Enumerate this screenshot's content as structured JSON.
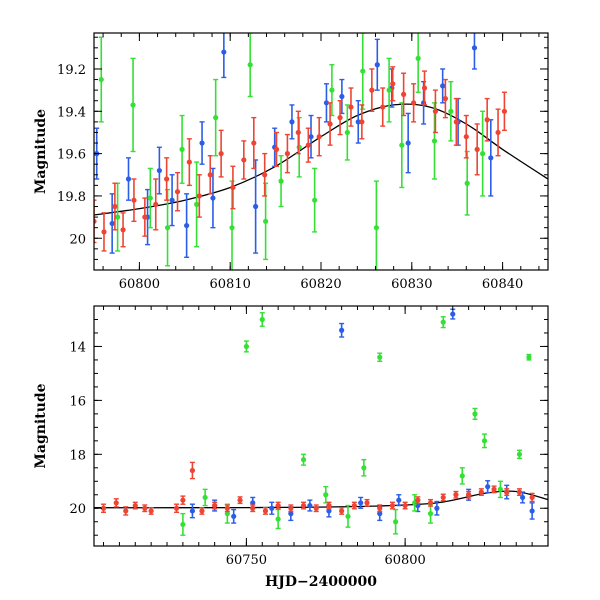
{
  "chart_data": [
    {
      "type": "scatter",
      "title": "",
      "xlabel": "",
      "ylabel": "Magnitude",
      "xlim": [
        60795,
        60845
      ],
      "ylim": [
        20.15,
        19.03
      ],
      "y_inverted": true,
      "x_ticks": [
        60800,
        60810,
        60820,
        60830,
        60840
      ],
      "x_tick_labels": [
        "60800",
        "60810",
        "60820",
        "60830",
        "60840"
      ],
      "y_ticks": [
        19.2,
        19.4,
        19.6,
        19.8,
        20.0
      ],
      "y_tick_labels": [
        "19.2",
        "19.4",
        "19.6",
        "19.8",
        "20"
      ],
      "model_curve": {
        "name": "",
        "color": "#000000",
        "x": [
          60795,
          60800,
          60805,
          60810,
          60815,
          60820,
          60824,
          60828,
          60832,
          60836,
          60840,
          60845
        ],
        "y": [
          19.89,
          19.86,
          19.82,
          19.76,
          19.66,
          19.52,
          19.42,
          19.37,
          19.38,
          19.46,
          19.58,
          19.72
        ]
      },
      "series": [
        {
          "name": "",
          "color": "#2b5ee8",
          "x": [
            60795.3,
            60797.0,
            60798.8,
            60800.9,
            60802.2,
            60803.6,
            60805.2,
            60806.9,
            60808.1,
            60809.3,
            60812.8,
            60814.9,
            60816.8,
            60818.9,
            60820.6,
            60822.3,
            60824.1,
            60826.2,
            60827.8,
            60829.6,
            60831.3,
            60833.4,
            60835.1,
            60836.9,
            60838.7
          ],
          "y": [
            19.6,
            19.93,
            19.72,
            19.9,
            19.68,
            19.82,
            19.94,
            19.55,
            19.81,
            19.12,
            19.85,
            19.57,
            19.45,
            19.52,
            19.36,
            19.33,
            19.45,
            19.18,
            19.29,
            19.55,
            19.36,
            19.28,
            19.45,
            19.1,
            19.62
          ],
          "err": [
            0.12,
            0.14,
            0.1,
            0.13,
            0.11,
            0.12,
            0.15,
            0.1,
            0.14,
            0.12,
            0.22,
            0.09,
            0.08,
            0.1,
            0.09,
            0.08,
            0.1,
            0.12,
            0.09,
            0.14,
            0.1,
            0.08,
            0.11,
            0.1,
            0.18
          ]
        },
        {
          "name": "",
          "color": "#35e035",
          "x": [
            60795.8,
            60797.6,
            60799.3,
            60801.2,
            60803.1,
            60804.7,
            60806.3,
            60808.4,
            60810.2,
            60812.2,
            60813.9,
            60815.6,
            60817.6,
            60819.3,
            60821.2,
            60822.9,
            60824.6,
            60826.1,
            60827.5,
            60828.9,
            60830.7,
            60832.5,
            60834.3,
            60836.1,
            60837.8
          ],
          "y": [
            19.25,
            19.9,
            19.37,
            19.81,
            19.95,
            19.58,
            19.84,
            19.43,
            19.95,
            19.18,
            19.92,
            19.73,
            19.57,
            19.82,
            19.3,
            19.5,
            19.21,
            19.95,
            19.3,
            19.56,
            19.15,
            19.54,
            19.4,
            19.74,
            19.6
          ],
          "err": [
            0.2,
            0.16,
            0.22,
            0.14,
            0.18,
            0.16,
            0.2,
            0.18,
            0.22,
            0.15,
            0.18,
            0.12,
            0.14,
            0.15,
            0.12,
            0.13,
            0.18,
            0.22,
            0.15,
            0.2,
            0.16,
            0.18,
            0.14,
            0.15,
            0.2
          ]
        },
        {
          "name": "",
          "color": "#ee4433",
          "x": [
            60795.0,
            60796.1,
            60797.3,
            60798.2,
            60799.4,
            60800.6,
            60801.8,
            60803.0,
            60804.2,
            60805.5,
            60806.6,
            60807.8,
            60809.0,
            60810.3,
            60811.5,
            60812.6,
            60813.8,
            60815.1,
            60816.3,
            60817.5,
            60818.6,
            60819.8,
            60821.0,
            60822.1,
            60823.3,
            60824.5,
            60825.6,
            60826.8,
            60827.9,
            60829.1,
            60830.2,
            60831.4,
            60832.6,
            60833.7,
            60834.9,
            60836.0,
            60837.2,
            60838.3,
            60839.5,
            60840.2
          ],
          "y": [
            19.92,
            19.97,
            19.85,
            19.96,
            19.82,
            19.9,
            19.84,
            19.72,
            19.78,
            19.64,
            19.8,
            19.7,
            19.6,
            19.76,
            19.63,
            19.55,
            19.7,
            19.58,
            19.6,
            19.5,
            19.56,
            19.52,
            19.46,
            19.43,
            19.38,
            19.45,
            19.3,
            19.38,
            19.27,
            19.32,
            19.36,
            19.29,
            19.4,
            19.34,
            19.45,
            19.52,
            19.58,
            19.44,
            19.5,
            19.4
          ],
          "err": [
            0.1,
            0.09,
            0.11,
            0.08,
            0.1,
            0.09,
            0.12,
            0.1,
            0.09,
            0.11,
            0.1,
            0.09,
            0.11,
            0.1,
            0.09,
            0.12,
            0.1,
            0.08,
            0.09,
            0.1,
            0.08,
            0.09,
            0.1,
            0.08,
            0.09,
            0.08,
            0.1,
            0.09,
            0.08,
            0.1,
            0.09,
            0.08,
            0.1,
            0.09,
            0.11,
            0.1,
            0.12,
            0.1,
            0.11,
            0.09
          ]
        }
      ]
    },
    {
      "type": "scatter",
      "title": "",
      "xlabel": "HJD−2400000",
      "ylabel": "Magnitude",
      "xlim": [
        60702,
        60845
      ],
      "ylim": [
        21.4,
        12.5
      ],
      "y_inverted": true,
      "x_ticks": [
        60750,
        60800
      ],
      "x_tick_labels": [
        "60750",
        "60800"
      ],
      "y_ticks": [
        14,
        16,
        18,
        20
      ],
      "y_tick_labels": [
        "14",
        "16",
        "18",
        "20"
      ],
      "model_curve": {
        "name": "",
        "color": "#000000",
        "x": [
          60702,
          60730,
          60760,
          60790,
          60810,
          60825,
          60835,
          60845
        ],
        "y": [
          19.98,
          19.98,
          19.97,
          19.92,
          19.8,
          19.45,
          19.38,
          19.68
        ]
      },
      "series": [
        {
          "name": "",
          "color": "#2b5ee8",
          "x": [
            60733,
            60740,
            60746,
            60752,
            60758,
            60764,
            60770,
            60776,
            60780,
            60786,
            60792,
            60798,
            60804,
            60810,
            60815,
            60820,
            60826,
            60832,
            60837,
            60840
          ],
          "y": [
            20.1,
            19.9,
            20.3,
            19.8,
            20.0,
            20.2,
            19.9,
            20.1,
            13.4,
            19.8,
            20.2,
            19.7,
            19.9,
            20.0,
            12.8,
            19.5,
            19.2,
            19.4,
            19.6,
            20.1
          ],
          "err": [
            0.25,
            0.2,
            0.25,
            0.2,
            0.22,
            0.25,
            0.2,
            0.22,
            0.25,
            0.2,
            0.25,
            0.2,
            0.22,
            0.25,
            0.18,
            0.2,
            0.22,
            0.25,
            0.2,
            0.3
          ]
        },
        {
          "name": "",
          "color": "#35e035",
          "x": [
            60730,
            60737,
            60744,
            60750,
            60755,
            60760,
            60768,
            60775,
            60782,
            60787,
            60792,
            60797,
            60803,
            60808,
            60812,
            60818,
            60822,
            60825,
            60830,
            60836,
            60839
          ],
          "y": [
            20.6,
            19.6,
            20.2,
            14.0,
            13.0,
            20.4,
            18.2,
            19.5,
            20.3,
            18.5,
            14.4,
            20.5,
            19.8,
            20.2,
            13.1,
            18.8,
            16.5,
            17.5,
            19.3,
            18.0,
            14.4
          ],
          "err": [
            0.4,
            0.3,
            0.35,
            0.2,
            0.25,
            0.35,
            0.2,
            0.3,
            0.4,
            0.3,
            0.15,
            0.45,
            0.3,
            0.35,
            0.2,
            0.3,
            0.2,
            0.25,
            0.3,
            0.15,
            0.1
          ]
        },
        {
          "name": "",
          "color": "#ee4433",
          "x": [
            60705,
            60709,
            60712,
            60715,
            60718,
            60720,
            60728,
            60730,
            60733,
            60736,
            60740,
            60744,
            60748,
            60752,
            60756,
            60760,
            60764,
            60768,
            60772,
            60776,
            60780,
            60784,
            60788,
            60792,
            60796,
            60800,
            60804,
            60808,
            60812,
            60816,
            60820,
            60824,
            60828,
            60832,
            60836,
            60840
          ],
          "y": [
            20.0,
            19.8,
            20.1,
            19.9,
            20.0,
            20.1,
            20.0,
            19.7,
            18.6,
            20.1,
            19.9,
            20.0,
            19.7,
            20.0,
            20.1,
            19.9,
            20.0,
            19.9,
            20.0,
            19.9,
            20.1,
            19.9,
            19.8,
            20.0,
            19.9,
            19.9,
            19.7,
            19.8,
            19.6,
            19.5,
            19.5,
            19.4,
            19.3,
            19.4,
            19.4,
            19.6
          ],
          "err": [
            0.15,
            0.15,
            0.15,
            0.12,
            0.12,
            0.12,
            0.15,
            0.15,
            0.3,
            0.12,
            0.12,
            0.12,
            0.12,
            0.12,
            0.12,
            0.12,
            0.12,
            0.12,
            0.12,
            0.12,
            0.12,
            0.12,
            0.12,
            0.12,
            0.12,
            0.12,
            0.12,
            0.12,
            0.12,
            0.12,
            0.12,
            0.12,
            0.12,
            0.12,
            0.12,
            0.15
          ]
        }
      ]
    }
  ]
}
